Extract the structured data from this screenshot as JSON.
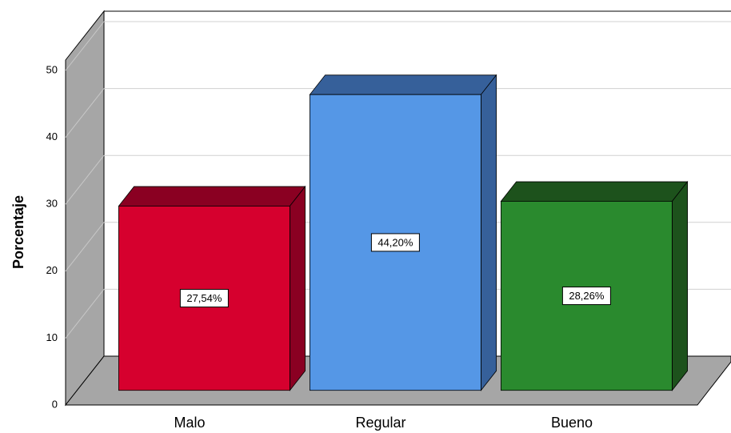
{
  "chart_data": {
    "type": "bar3d",
    "ylabel": "Porcentaje",
    "categories": [
      "Malo",
      "Regular",
      "Bueno"
    ],
    "values": [
      27.54,
      44.2,
      28.26
    ],
    "value_labels": [
      "27,54%",
      "44,20%",
      "28,26%"
    ],
    "colors": [
      "#d6002e",
      "#5597e6",
      "#2a8a2e"
    ],
    "dark_colors": [
      "#8a0022",
      "#36609a",
      "#1d521c"
    ],
    "ylim": [
      0,
      50
    ],
    "yticks": [
      0,
      10,
      20,
      30,
      40,
      50
    ],
    "grid": true
  }
}
